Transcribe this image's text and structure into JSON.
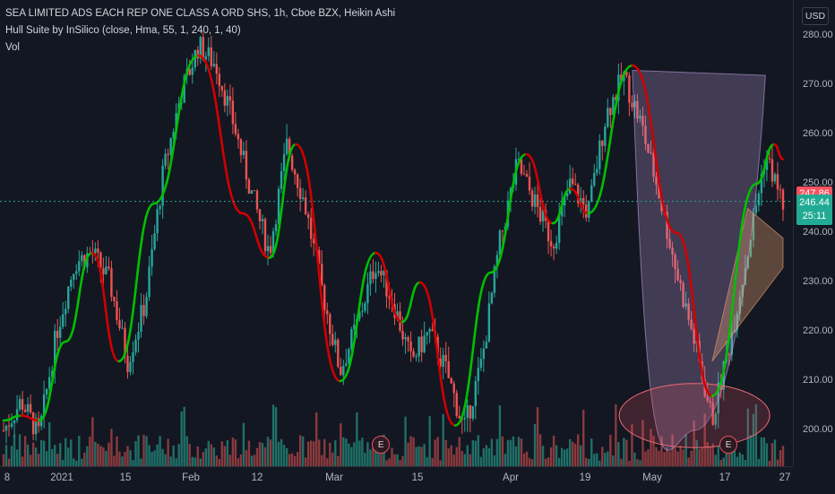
{
  "legend": {
    "title": "SEA LIMITED ADS EACH REP ONE CLASS A ORD SHS, 1h, Cboe BZX, Heikin Ashi",
    "indicator": "Hull Suite by InSilico (close, Hma, 55, 1, 240, 1, 40)",
    "volume": "Vol"
  },
  "currency": "USD",
  "price_tags": {
    "hull_value": "247.86",
    "last_price": "246.44",
    "countdown": "25:11"
  },
  "earnings_markers": [
    "E",
    "E"
  ],
  "chart_data": {
    "type": "candlestick",
    "title": "SEA LIMITED ADS EACH REP ONE CLASS A ORD SHS, 1h, Cboe BZX, Heikin Ashi",
    "ylim": [
      192,
      285
    ],
    "y_ticks": [
      "280.00",
      "270.00",
      "260.00",
      "250.00",
      "240.00",
      "230.00",
      "220.00",
      "210.00",
      "200.00"
    ],
    "x_ticks": [
      "8",
      "2021",
      "15",
      "Feb",
      "12",
      "Mar",
      "15",
      "Apr",
      "19",
      "May",
      "17",
      "27"
    ],
    "grid": false,
    "colors": {
      "up": "#26a69a",
      "down": "#ef5350",
      "hull_up": "#00c000",
      "hull_down": "#d00000",
      "projection_wedge": "#e8a070",
      "cup": "#b99ad6",
      "volume_up": "#1f6f67",
      "volume_down": "#8a3a3e"
    },
    "price_path": [
      [
        0,
        200
      ],
      [
        2,
        206
      ],
      [
        4,
        199
      ],
      [
        6,
        220
      ],
      [
        8,
        234
      ],
      [
        10,
        236
      ],
      [
        12,
        230
      ],
      [
        14,
        214
      ],
      [
        16,
        226
      ],
      [
        18,
        252
      ],
      [
        20,
        268
      ],
      [
        22,
        278
      ],
      [
        24,
        274
      ],
      [
        26,
        262
      ],
      [
        28,
        248
      ],
      [
        30,
        236
      ],
      [
        32,
        258
      ],
      [
        34,
        246
      ],
      [
        36,
        228
      ],
      [
        38,
        212
      ],
      [
        40,
        222
      ],
      [
        42,
        234
      ],
      [
        44,
        226
      ],
      [
        46,
        214
      ],
      [
        48,
        220
      ],
      [
        50,
        212
      ],
      [
        52,
        200
      ],
      [
        54,
        214
      ],
      [
        56,
        238
      ],
      [
        58,
        254
      ],
      [
        60,
        246
      ],
      [
        62,
        238
      ],
      [
        64,
        250
      ],
      [
        66,
        244
      ],
      [
        68,
        264
      ],
      [
        70,
        272
      ],
      [
        72,
        262
      ],
      [
        74,
        248
      ],
      [
        76,
        232
      ],
      [
        78,
        218
      ],
      [
        80,
        202
      ],
      [
        82,
        218
      ],
      [
        84,
        236
      ],
      [
        86,
        256
      ],
      [
        88,
        246
      ]
    ],
    "hull_path": [
      [
        0,
        202,
        "up"
      ],
      [
        2,
        203,
        "down"
      ],
      [
        4,
        202,
        "up"
      ],
      [
        7,
        218,
        "up"
      ],
      [
        10,
        236,
        "down"
      ],
      [
        13,
        214,
        "up"
      ],
      [
        17,
        246,
        "up"
      ],
      [
        22,
        276,
        "down"
      ],
      [
        27,
        244,
        "down"
      ],
      [
        30,
        235,
        "up"
      ],
      [
        33,
        258,
        "down"
      ],
      [
        38,
        210,
        "up"
      ],
      [
        42,
        236,
        "down"
      ],
      [
        45,
        222,
        "up"
      ],
      [
        47,
        230,
        "down"
      ],
      [
        51,
        201,
        "up"
      ],
      [
        55,
        232,
        "up"
      ],
      [
        59,
        256,
        "down"
      ],
      [
        62,
        242,
        "up"
      ],
      [
        64,
        249,
        "down"
      ],
      [
        66,
        244,
        "up"
      ],
      [
        71,
        274,
        "down"
      ],
      [
        76,
        240,
        "down"
      ],
      [
        80,
        207,
        "up"
      ],
      [
        85,
        250,
        "up"
      ],
      [
        87,
        258,
        "down"
      ],
      [
        88,
        255,
        "down"
      ]
    ],
    "cup_shape": {
      "top_left": [
        71,
        273
      ],
      "top_right": [
        86,
        272
      ],
      "bottom": [
        78,
        200
      ]
    },
    "support_ellipse": {
      "center": [
        78,
        203
      ],
      "price_half_height": 6.5,
      "x_half_width": 8.5
    },
    "projection_wedge": {
      "apex": [
        84,
        245
      ],
      "upper_end": [
        88,
        239
      ],
      "lower_end": [
        88,
        233
      ]
    }
  }
}
